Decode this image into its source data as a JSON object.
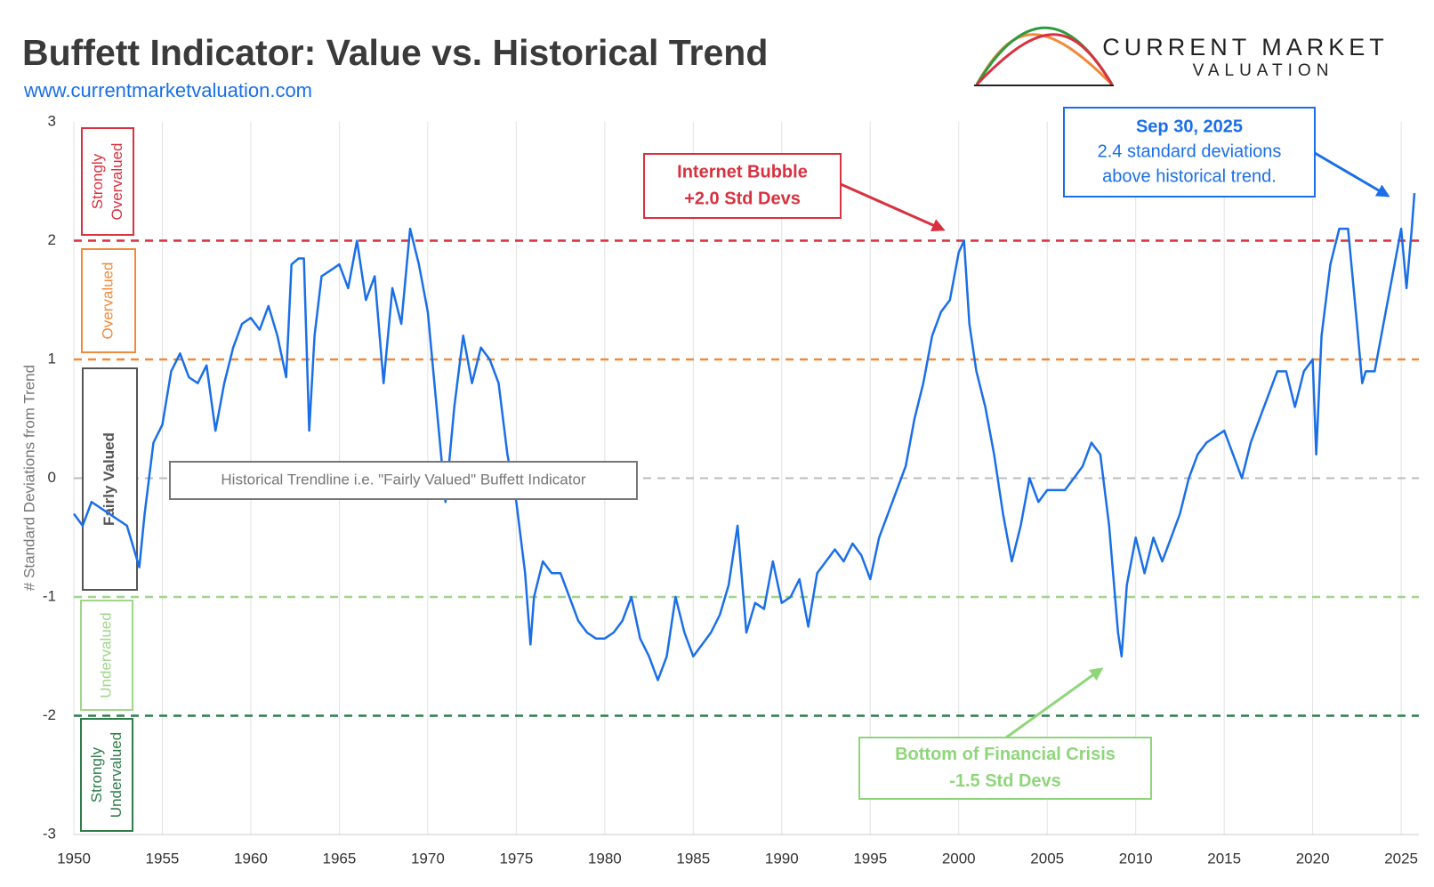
{
  "chart_data": {
    "type": "line",
    "title": "Buffett Indicator: Value vs. Historical Trend",
    "subtitle": "www.currentmarketvaluation.com",
    "logo": [
      "CURRENT MARKET",
      "VALUATION"
    ],
    "y_label": "# Standard Deviations from Trend",
    "xlim": [
      1950,
      2026
    ],
    "xticks": [
      1950,
      1955,
      1960,
      1965,
      1970,
      1975,
      1980,
      1985,
      1990,
      1995,
      2000,
      2005,
      2010,
      2015,
      2020,
      2025
    ],
    "ylim": [
      -3,
      3
    ],
    "yticks": [
      -3,
      -2,
      -1,
      0,
      1,
      2,
      3
    ],
    "grid": "x",
    "reference_lines": [
      {
        "value": 2,
        "color": "#d9313f"
      },
      {
        "value": 1,
        "color": "#f08a3c"
      },
      {
        "value": 0,
        "color": "#bbbbbb"
      },
      {
        "value": -1,
        "color": "#9fd68a"
      },
      {
        "value": -2,
        "color": "#2e7d4a"
      }
    ],
    "zones": [
      {
        "label": "Strongly Overvalued",
        "color": "#d9313f"
      },
      {
        "label": "Overvalued",
        "color": "#f08a3c"
      },
      {
        "label": "Fairly Valued",
        "color": "#555555"
      },
      {
        "label": "Undervalued",
        "color": "#9fd68a"
      },
      {
        "label": "Strongly Undervalued",
        "color": "#2e7d4a"
      }
    ],
    "annotations": [
      {
        "lines": [
          "Internet Bubble",
          "+2.0 Std Devs"
        ],
        "color": "#d9313f"
      },
      {
        "lines": [
          "Sep 30, 2025",
          "2.4 standard deviations",
          "above historical trend."
        ],
        "color": "#1a6fe8"
      },
      {
        "lines": [
          "Bottom of Financial Crisis",
          "-1.5 Std Devs"
        ],
        "color": "#8fd67a"
      },
      {
        "lines": [
          "Historical Trendline i.e. \"Fairly Valued\" Buffett Indicator"
        ],
        "color": "#777777"
      }
    ],
    "series": [
      {
        "name": "Buffett Indicator",
        "color": "#1a6fe8",
        "x": [
          1950,
          1950.5,
          1951,
          1952,
          1953,
          1953.7,
          1954,
          1954.5,
          1955,
          1955.5,
          1956,
          1956.5,
          1957,
          1957.5,
          1958,
          1958.5,
          1959,
          1959.5,
          1960,
          1960.5,
          1961,
          1961.5,
          1962,
          1962.3,
          1962.7,
          1963,
          1963.3,
          1963.6,
          1964,
          1964.5,
          1965,
          1965.5,
          1966,
          1966.5,
          1967,
          1967.5,
          1968,
          1968.5,
          1969,
          1969.5,
          1970,
          1970.5,
          1971,
          1971.5,
          1972,
          1972.5,
          1973,
          1973.5,
          1974,
          1974.5,
          1975,
          1975.5,
          1975.8,
          1976,
          1976.5,
          1977,
          1977.5,
          1978,
          1978.5,
          1979,
          1979.5,
          1980,
          1980.5,
          1981,
          1981.5,
          1982,
          1982.5,
          1983,
          1983.5,
          1984,
          1984.5,
          1985,
          1985.5,
          1986,
          1986.5,
          1987,
          1987.5,
          1988,
          1988.5,
          1989,
          1989.5,
          1990,
          1990.5,
          1991,
          1991.5,
          1992,
          1992.5,
          1993,
          1993.5,
          1994,
          1994.5,
          1995,
          1995.5,
          1996,
          1996.5,
          1997,
          1997.5,
          1998,
          1998.5,
          1999,
          1999.5,
          2000,
          2000.3,
          2000.6,
          2001,
          2001.5,
          2002,
          2002.5,
          2003,
          2003.5,
          2004,
          2004.5,
          2005,
          2005.5,
          2006,
          2006.5,
          2007,
          2007.5,
          2008,
          2008.5,
          2009,
          2009.2,
          2009.5,
          2010,
          2010.5,
          2011,
          2011.5,
          2012,
          2012.5,
          2013,
          2013.5,
          2014,
          2014.5,
          2015,
          2015.5,
          2016,
          2016.5,
          2017,
          2017.5,
          2018,
          2018.5,
          2019,
          2019.5,
          2020,
          2020.2,
          2020.5,
          2021,
          2021.5,
          2022,
          2022.5,
          2022.8,
          2023,
          2023.5,
          2024,
          2024.5,
          2025,
          2025.3,
          2025.6,
          2025.75
        ],
        "values": [
          -0.3,
          -0.4,
          -0.2,
          -0.3,
          -0.4,
          -0.75,
          -0.3,
          0.3,
          0.45,
          0.9,
          1.05,
          0.85,
          0.8,
          0.95,
          0.4,
          0.8,
          1.1,
          1.3,
          1.35,
          1.25,
          1.45,
          1.2,
          0.85,
          1.8,
          1.85,
          1.85,
          0.4,
          1.2,
          1.7,
          1.75,
          1.8,
          1.6,
          2.0,
          1.5,
          1.7,
          0.8,
          1.6,
          1.3,
          2.1,
          1.8,
          1.4,
          0.6,
          -0.2,
          0.6,
          1.2,
          0.8,
          1.1,
          1.0,
          0.8,
          0.2,
          -0.2,
          -0.8,
          -1.4,
          -1.0,
          -0.7,
          -0.8,
          -0.8,
          -1.0,
          -1.2,
          -1.3,
          -1.35,
          -1.35,
          -1.3,
          -1.2,
          -1.0,
          -1.35,
          -1.5,
          -1.7,
          -1.5,
          -1.0,
          -1.3,
          -1.5,
          -1.4,
          -1.3,
          -1.15,
          -0.9,
          -0.4,
          -1.3,
          -1.05,
          -1.1,
          -0.7,
          -1.05,
          -1.0,
          -0.85,
          -1.25,
          -0.8,
          -0.7,
          -0.6,
          -0.7,
          -0.55,
          -0.65,
          -0.85,
          -0.5,
          -0.3,
          -0.1,
          0.1,
          0.5,
          0.8,
          1.2,
          1.4,
          1.5,
          1.9,
          2.0,
          1.3,
          0.9,
          0.6,
          0.2,
          -0.3,
          -0.7,
          -0.4,
          0.0,
          -0.2,
          -0.1,
          -0.1,
          -0.1,
          0.0,
          0.1,
          0.3,
          0.2,
          -0.4,
          -1.3,
          -1.5,
          -0.9,
          -0.5,
          -0.8,
          -0.5,
          -0.7,
          -0.5,
          -0.3,
          0.0,
          0.2,
          0.3,
          0.35,
          0.4,
          0.2,
          0.0,
          0.3,
          0.5,
          0.7,
          0.9,
          0.9,
          0.6,
          0.9,
          1.0,
          0.2,
          1.2,
          1.8,
          2.1,
          2.1,
          1.3,
          0.8,
          0.9,
          0.9,
          1.3,
          1.7,
          2.1,
          1.6,
          2.1,
          2.4
        ]
      }
    ]
  }
}
